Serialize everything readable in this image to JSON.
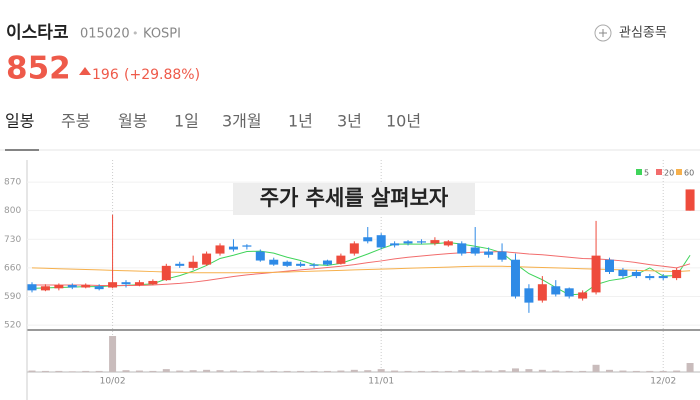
{
  "header": {
    "name": "이스타코",
    "code": "015020",
    "separator": "•",
    "market": "KOSPI",
    "watch_button": "관심종목",
    "price": "852",
    "change": "196",
    "change_pct": "(+29.88%)"
  },
  "tabs": [
    "일봉",
    "주봉",
    "월봉",
    "1일",
    "3개월",
    "1년",
    "3년",
    "10년"
  ],
  "banner": "주가 추세를 살펴보자",
  "chart_data": {
    "type": "candlestick",
    "categories": [
      null,
      null,
      null,
      null,
      null,
      null,
      "10/02",
      null,
      null,
      null,
      null,
      null,
      null,
      null,
      null,
      null,
      null,
      null,
      null,
      null,
      null,
      null,
      null,
      null,
      null,
      null,
      "11/01",
      null,
      null,
      null,
      null,
      null,
      null,
      null,
      null,
      null,
      null,
      null,
      null,
      null,
      null,
      null,
      null,
      null,
      null,
      null,
      null,
      "12/02",
      null,
      null
    ],
    "open": [
      620,
      605,
      610,
      618,
      612,
      615,
      612,
      625,
      618,
      620,
      630,
      670,
      660,
      668,
      695,
      712,
      715,
      700,
      680,
      675,
      670,
      668,
      678,
      670,
      695,
      735,
      740,
      720,
      725,
      725,
      720,
      715,
      720,
      710,
      700,
      700,
      680,
      610,
      580,
      615,
      610,
      585,
      600,
      680,
      655,
      650,
      640,
      640,
      635,
      800
    ],
    "high": [
      625,
      620,
      622,
      622,
      622,
      620,
      790,
      630,
      630,
      632,
      670,
      675,
      690,
      700,
      720,
      730,
      718,
      705,
      685,
      678,
      675,
      672,
      680,
      695,
      725,
      760,
      745,
      725,
      728,
      730,
      735,
      728,
      725,
      760,
      710,
      720,
      695,
      620,
      640,
      630,
      612,
      605,
      775,
      685,
      660,
      655,
      645,
      645,
      660,
      852
    ],
    "low": [
      600,
      603,
      605,
      608,
      610,
      605,
      610,
      612,
      615,
      618,
      628,
      660,
      655,
      665,
      690,
      700,
      705,
      675,
      665,
      662,
      662,
      660,
      665,
      668,
      690,
      720,
      705,
      710,
      715,
      718,
      715,
      712,
      690,
      690,
      685,
      675,
      585,
      550,
      575,
      590,
      585,
      580,
      595,
      645,
      635,
      635,
      630,
      630,
      630,
      800
    ],
    "close": [
      605,
      615,
      618,
      612,
      618,
      608,
      625,
      620,
      625,
      628,
      665,
      665,
      675,
      695,
      715,
      705,
      712,
      678,
      668,
      665,
      665,
      665,
      668,
      690,
      720,
      725,
      710,
      715,
      720,
      722,
      728,
      725,
      695,
      695,
      692,
      680,
      590,
      575,
      620,
      595,
      590,
      600,
      690,
      650,
      640,
      640,
      635,
      635,
      655,
      852
    ],
    "volume": [
      4,
      3,
      3,
      2,
      3,
      3,
      100,
      5,
      4,
      3,
      8,
      4,
      5,
      6,
      5,
      4,
      3,
      4,
      3,
      3,
      3,
      3,
      3,
      4,
      6,
      5,
      8,
      4,
      3,
      3,
      3,
      3,
      5,
      4,
      4,
      5,
      10,
      8,
      6,
      4,
      3,
      3,
      20,
      6,
      4,
      3,
      3,
      3,
      4,
      25
    ],
    "up_color": "#ee4b3c",
    "down_color": "#2e8ae6",
    "volume_color": "#c9bcbc",
    "series": [
      {
        "name": "5",
        "color": "#3fd45a",
        "values": [
          610,
          611,
          612,
          613,
          614,
          614,
          616,
          617,
          619,
          621,
          633,
          641,
          652,
          666,
          683,
          691,
          700,
          701,
          696,
          686,
          678,
          668,
          666,
          671,
          682,
          694,
          707,
          718,
          718,
          718,
          719,
          722,
          718,
          713,
          707,
          697,
          670,
          646,
          631,
          612,
          594,
          596,
          619,
          629,
          634,
          644,
          660,
          640,
          641,
          691
        ]
      },
      {
        "name": "20",
        "color": "#f26c6c",
        "values": [
          618,
          618,
          618,
          618,
          618,
          617,
          617,
          617,
          617,
          618,
          620,
          622,
          625,
          629,
          634,
          639,
          643,
          646,
          649,
          652,
          655,
          658,
          661,
          664,
          668,
          673,
          677,
          682,
          686,
          689,
          692,
          695,
          697,
          698,
          699,
          700,
          697,
          694,
          692,
          689,
          686,
          683,
          682,
          680,
          677,
          673,
          668,
          664,
          660,
          670
        ]
      },
      {
        "name": "60",
        "color": "#f6b04c",
        "values": [
          660,
          659,
          658,
          657,
          656,
          655,
          654,
          653,
          652,
          651,
          650,
          649,
          648,
          648,
          648,
          648,
          648,
          649,
          649,
          650,
          651,
          652,
          653,
          654,
          655,
          656,
          657,
          658,
          659,
          660,
          661,
          662,
          663,
          664,
          664,
          664,
          663,
          662,
          661,
          660,
          659,
          658,
          657,
          656,
          655,
          654,
          653,
          652,
          651,
          653
        ]
      }
    ],
    "ylim": [
      508,
      924
    ],
    "yticks": [
      520,
      590,
      660,
      730,
      800,
      870
    ],
    "grid": true
  }
}
